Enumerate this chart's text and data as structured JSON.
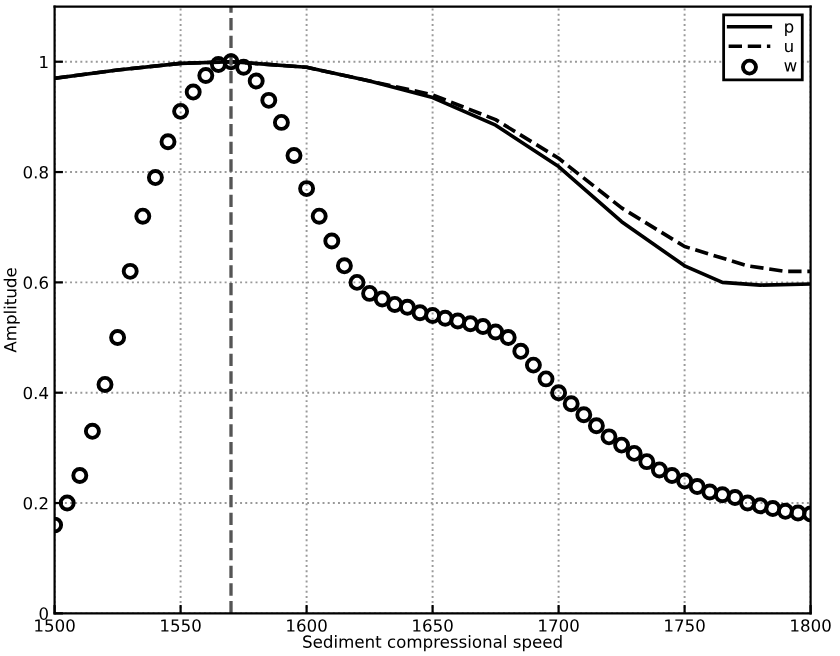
{
  "chart_data": {
    "type": "line",
    "xlabel": "Sediment compressional speed",
    "ylabel": "Amplitude",
    "xlim": [
      1500,
      1800
    ],
    "ylim": [
      0,
      1.1
    ],
    "xticks": [
      1500,
      1550,
      1600,
      1650,
      1700,
      1750,
      1800
    ],
    "yticks": [
      0,
      0.2,
      0.4,
      0.6,
      0.8,
      1
    ],
    "grid": true,
    "legend": "top right",
    "series": [
      {
        "name": "p",
        "color": "#000000",
        "line_style": "solid",
        "marker": "none",
        "x": [
          1500,
          1525,
          1550,
          1570,
          1600,
          1625,
          1650,
          1675,
          1700,
          1725,
          1750,
          1765,
          1780,
          1800
        ],
        "values": [
          0.97,
          0.985,
          0.997,
          1.0,
          0.99,
          0.965,
          0.935,
          0.885,
          0.81,
          0.71,
          0.63,
          0.6,
          0.595,
          0.597
        ]
      },
      {
        "name": "u",
        "color": "#000000",
        "line_style": "dashed",
        "marker": "none",
        "x": [
          1500,
          1525,
          1550,
          1570,
          1600,
          1625,
          1650,
          1675,
          1700,
          1725,
          1750,
          1775,
          1790,
          1800
        ],
        "values": [
          0.97,
          0.985,
          0.997,
          1.0,
          0.99,
          0.965,
          0.94,
          0.895,
          0.825,
          0.735,
          0.665,
          0.63,
          0.62,
          0.62
        ]
      },
      {
        "name": "w",
        "type": "scatter",
        "color": "#000000",
        "marker": "circle",
        "x": [
          1500,
          1505,
          1510,
          1515,
          1520,
          1525,
          1530,
          1535,
          1540,
          1545,
          1550,
          1555,
          1560,
          1565,
          1570,
          1575,
          1580,
          1585,
          1590,
          1595,
          1600,
          1605,
          1610,
          1615,
          1620,
          1625,
          1630,
          1635,
          1640,
          1645,
          1650,
          1655,
          1660,
          1665,
          1670,
          1675,
          1680,
          1685,
          1690,
          1695,
          1700,
          1705,
          1710,
          1715,
          1720,
          1725,
          1730,
          1735,
          1740,
          1745,
          1750,
          1755,
          1760,
          1765,
          1770,
          1775,
          1780,
          1785,
          1790,
          1795,
          1800
        ],
        "values": [
          0.16,
          0.2,
          0.25,
          0.33,
          0.415,
          0.5,
          0.62,
          0.72,
          0.79,
          0.855,
          0.91,
          0.945,
          0.975,
          0.995,
          1.0,
          0.99,
          0.965,
          0.93,
          0.89,
          0.83,
          0.77,
          0.72,
          0.675,
          0.63,
          0.6,
          0.58,
          0.57,
          0.56,
          0.555,
          0.545,
          0.54,
          0.535,
          0.53,
          0.525,
          0.52,
          0.51,
          0.5,
          0.475,
          0.45,
          0.425,
          0.4,
          0.38,
          0.36,
          0.34,
          0.32,
          0.305,
          0.29,
          0.275,
          0.26,
          0.25,
          0.24,
          0.23,
          0.22,
          0.215,
          0.21,
          0.2,
          0.195,
          0.19,
          0.185,
          0.182,
          0.18
        ]
      }
    ],
    "ref_lines": [
      {
        "axis": "x",
        "value": 1570,
        "color": "#555555",
        "line_style": "dashed"
      }
    ]
  }
}
